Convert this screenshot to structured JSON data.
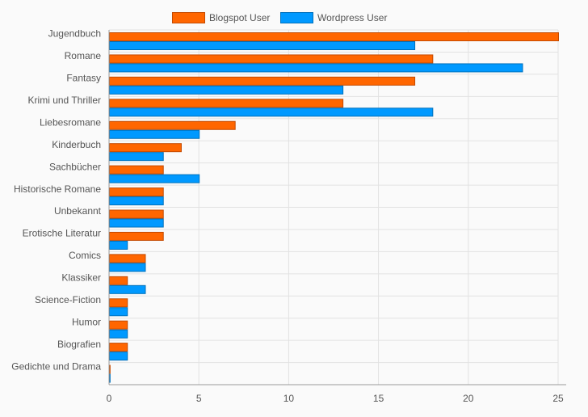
{
  "chart_data": {
    "type": "bar",
    "orientation": "horizontal",
    "categories": [
      "Jugendbuch",
      "Romane",
      "Fantasy",
      "Krimi und Thriller",
      "Liebesromane",
      "Kinderbuch",
      "Sachbücher",
      "Historische Romane",
      "Unbekannt",
      "Erotische Literatur",
      "Comics",
      "Klassiker",
      "Science-Fiction",
      "Humor",
      "Biografien",
      "Gedichte und Drama"
    ],
    "series": [
      {
        "name": "Blogspot User",
        "color": "#ff6600",
        "stroke": "#c44a00",
        "values": [
          25,
          18,
          17,
          13,
          7,
          4,
          3,
          3,
          3,
          3,
          2,
          1,
          1,
          1,
          1,
          0
        ]
      },
      {
        "name": "Wordpress User",
        "color": "#0099ff",
        "stroke": "#0070bb",
        "values": [
          17,
          23,
          13,
          18,
          5,
          3,
          5,
          3,
          3,
          1,
          2,
          2,
          1,
          1,
          1,
          0
        ]
      }
    ],
    "xlim": [
      0,
      25
    ],
    "xticks": [
      0,
      5,
      10,
      15,
      20,
      25
    ],
    "grid": true,
    "legend_position": "top-center",
    "title": "",
    "xlabel": "",
    "ylabel": ""
  }
}
